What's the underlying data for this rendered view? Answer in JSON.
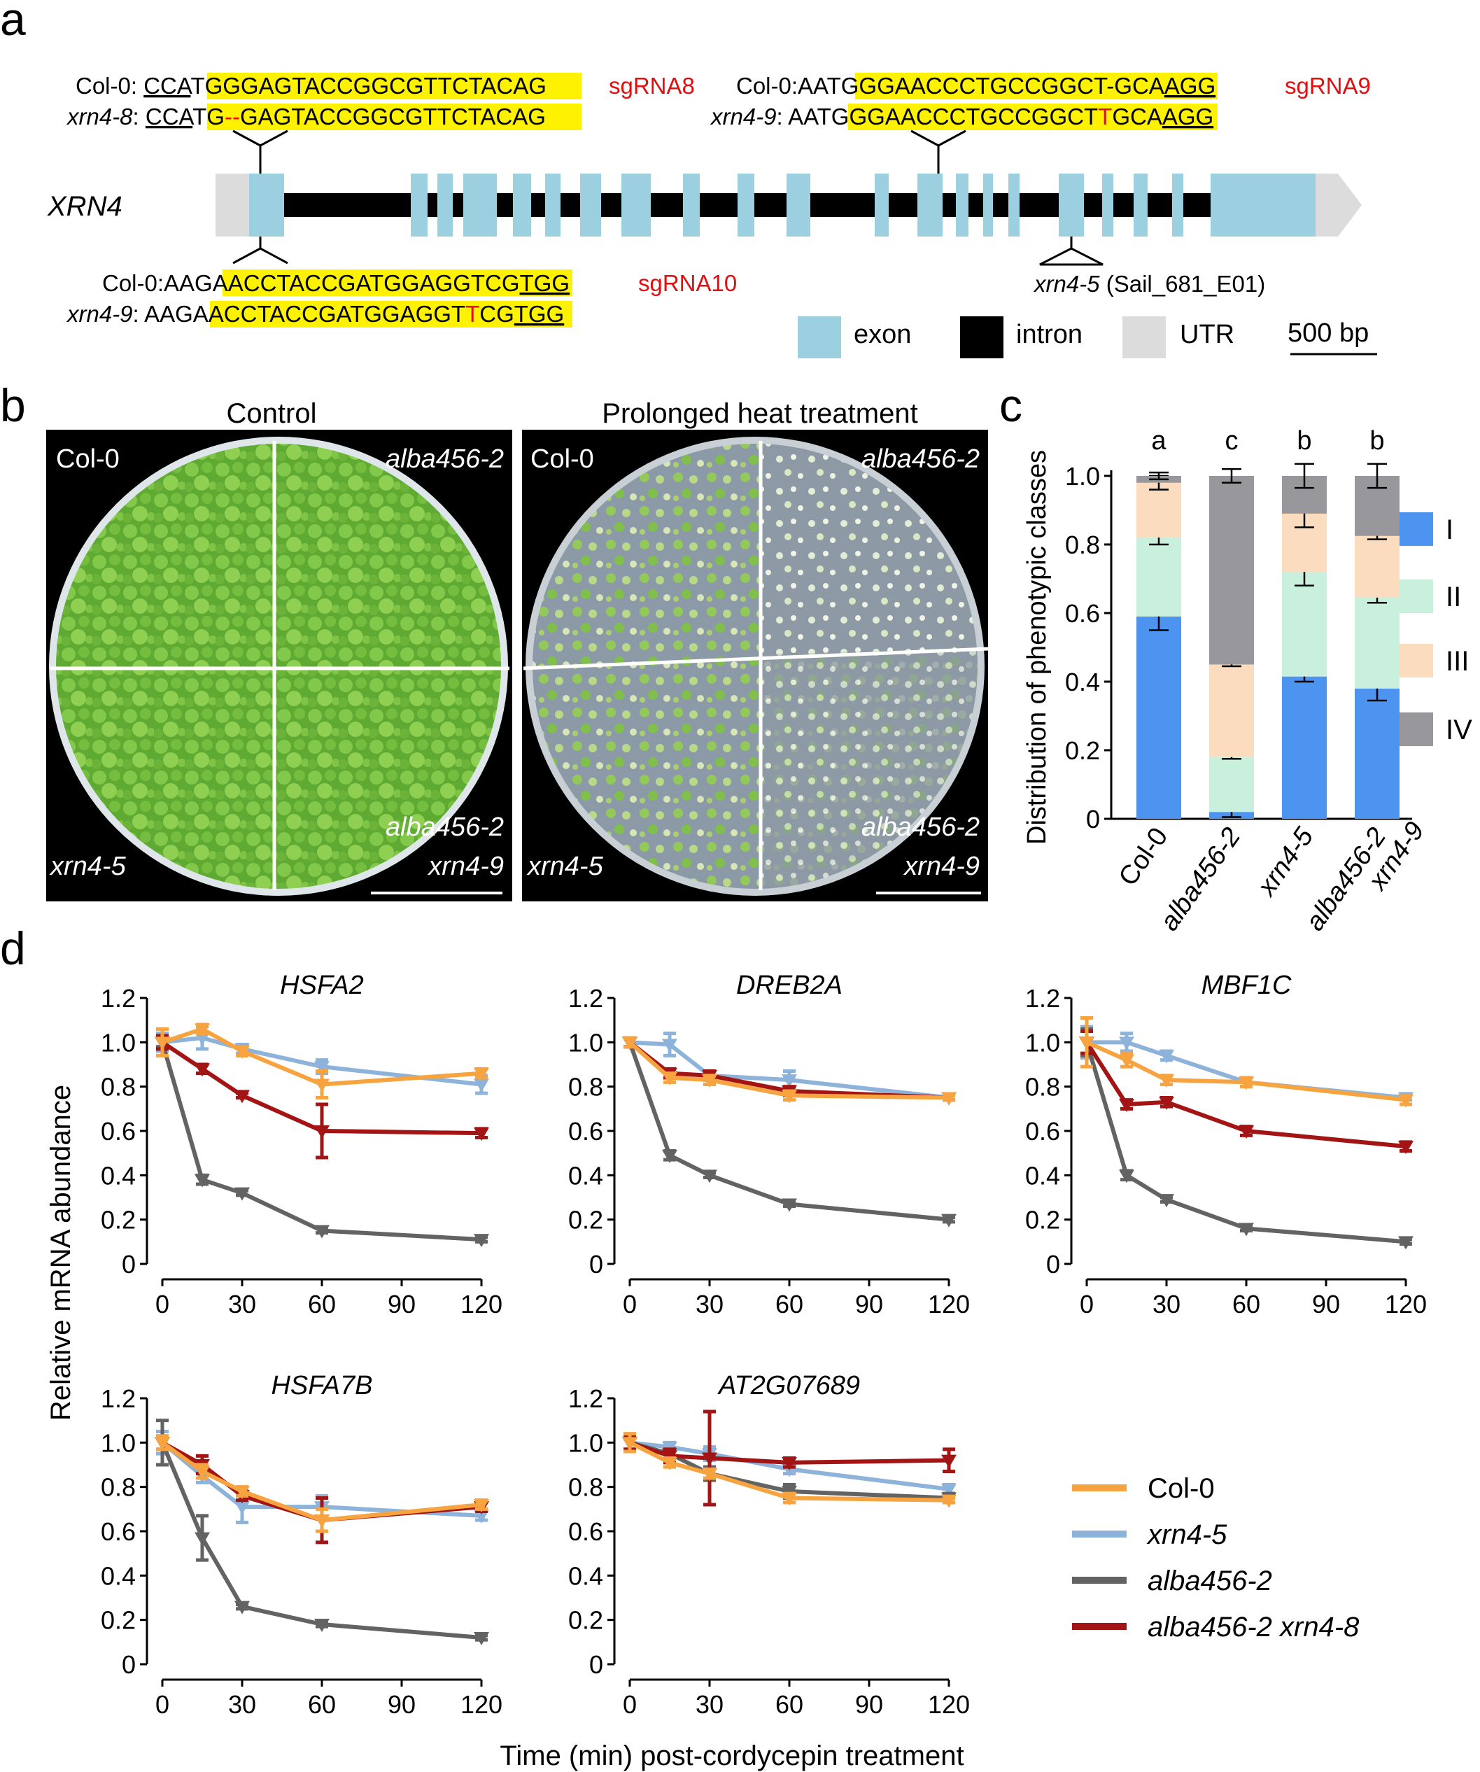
{
  "panels": {
    "a": "a",
    "b": "b",
    "c": "c",
    "d": "d"
  },
  "panel_a": {
    "gene": "XRN4",
    "sg8": {
      "l1": {
        "pre": "Col-0: ",
        "u1": "CCA",
        "y": "TGGGAGTACCGGCGTTCTA",
        "post": "CAG"
      },
      "l2": {
        "pre": "xrn4-8",
        "colon": ": ",
        "u1": "CCA",
        "yA": "TG",
        "del": "--",
        "yB": "GAGTACCGGCGTTCTA",
        "post": "CAG"
      },
      "name": "sgRNA8"
    },
    "sg9": {
      "l1": {
        "pre": "Col-0:AAT",
        "y": "GGGAACCCTGCCGGCT-GCA",
        "u": "AGG"
      },
      "l2": {
        "pre": "xrn4-9",
        "colon": ": AAT",
        "yA": "GGGAACCCTGCCGGCT",
        "ins": "T",
        "yB": "GCA",
        "u": "AGG"
      },
      "name": "sgRNA9"
    },
    "sg10": {
      "l1": {
        "pre": "Col-0:AAG",
        "y": "AACCTACCGATGGAGGTCG",
        "u": "TGG"
      },
      "l2": {
        "pre": "xrn4-9",
        "colon": ": AAG",
        "yA": "AACCTACCGATGGAGGT",
        "ins": "T",
        "yB": "CG",
        "u": "TGG"
      },
      "name": "sgRNA10"
    },
    "tdna": {
      "name": "xrn4-5",
      "line": " (Sail_681_E01)"
    },
    "legend": {
      "exon": "exon",
      "intron": "intron",
      "utr": "UTR",
      "scale": "500 bp"
    },
    "colors": {
      "exon": "#9ccfdf",
      "intron": "#000000",
      "utr": "#dcdcdc",
      "hl": "#fff200",
      "mut": "#e01010"
    }
  },
  "panel_b": {
    "left_title": "Control",
    "right_title": "Prolonged heat treatment",
    "q_tl": "Col-0",
    "q_tr": "alba456-2",
    "q_bl": "xrn4-5",
    "q_br1": "alba456-2",
    "q_br2": "xrn4-9"
  },
  "chart_data": [
    {
      "type": "bar",
      "stacked": true,
      "panel": "c",
      "ylabel": "Distribution of phenotypic classes",
      "ylim": [
        0,
        1.0
      ],
      "yticks": [
        "0",
        "0.2",
        "0.4",
        "0.6",
        "0.8",
        "1.0"
      ],
      "categories": [
        {
          "l1": "Col-0",
          "l2": ""
        },
        {
          "l1": "alba456-2",
          "l2": ""
        },
        {
          "l1": "xrn4-5",
          "l2": ""
        },
        {
          "l1": "alba456-2",
          "l2": "xrn4-9"
        }
      ],
      "letters": [
        "a",
        "c",
        "b",
        "b"
      ],
      "series": [
        {
          "name": "I",
          "color": "#4d94f0",
          "values": [
            0.59,
            0.02,
            0.415,
            0.38
          ],
          "err": [
            0.04,
            0.015,
            0.015,
            0.035
          ]
        },
        {
          "name": "II",
          "color": "#c9f0dd",
          "values": [
            0.23,
            0.16,
            0.305,
            0.265
          ],
          "err": [
            0.02,
            0.005,
            0.04,
            0.015
          ]
        },
        {
          "name": "III",
          "color": "#fbdcbf",
          "values": [
            0.16,
            0.27,
            0.17,
            0.18
          ],
          "err": [
            0.02,
            0.005,
            0.04,
            0.01
          ]
        },
        {
          "name": "IV",
          "color": "#97979c",
          "values": [
            0.02,
            0.55,
            0.11,
            0.175
          ],
          "err": [
            0.01,
            0.02,
            0.035,
            0.035
          ]
        }
      ]
    },
    {
      "type": "line",
      "panel": "d",
      "ylabel": "Relative mRNA abundance",
      "xlabel": "Time (min) post-cordycepin treatment",
      "x": [
        0,
        15,
        30,
        60,
        120
      ],
      "xticks": [
        "0",
        "30",
        "60",
        "90",
        "120"
      ],
      "xlim": [
        0,
        120
      ],
      "ylim": [
        0,
        1.2
      ],
      "yticks": [
        "0",
        "0.2",
        "0.4",
        "0.6",
        "0.8",
        "1.0",
        "1.2"
      ],
      "legend": [
        {
          "label": "Col-0",
          "color": "#f7a340"
        },
        {
          "label": "xrn4-5",
          "color": "#8eb3da"
        },
        {
          "label": "alba456-2",
          "color": "#636363"
        },
        {
          "label": "alba456-2 xrn4-8",
          "color": "#a31515"
        }
      ],
      "genes": [
        {
          "title": "HSFA2",
          "series": [
            {
              "name": "xrn4-5",
              "color": "#8eb3da",
              "values": [
                1.0,
                1.02,
                0.97,
                0.89,
                0.81
              ],
              "err": [
                0.04,
                0.05,
                0.02,
                0.03,
                0.04
              ]
            },
            {
              "name": "alba456-2",
              "color": "#636363",
              "values": [
                1.0,
                0.38,
                0.32,
                0.15,
                0.11
              ],
              "err": [
                0.02,
                0.02,
                0.01,
                0.01,
                0.01
              ]
            },
            {
              "name": "alba456-2 xrn4-8",
              "color": "#a31515",
              "values": [
                1.0,
                0.88,
                0.76,
                0.6,
                0.59
              ],
              "err": [
                0.03,
                0.02,
                0.01,
                0.12,
                0.02
              ]
            },
            {
              "name": "Col-0",
              "color": "#f7a340",
              "values": [
                1.0,
                1.06,
                0.96,
                0.81,
                0.86
              ],
              "err": [
                0.06,
                0.02,
                0.02,
                0.06,
                0.02
              ]
            }
          ]
        },
        {
          "title": "DREB2A",
          "series": [
            {
              "name": "xrn4-5",
              "color": "#8eb3da",
              "values": [
                1.0,
                0.99,
                0.85,
                0.83,
                0.75
              ],
              "err": [
                0.02,
                0.05,
                0.02,
                0.04,
                0.01
              ]
            },
            {
              "name": "alba456-2",
              "color": "#636363",
              "values": [
                1.0,
                0.49,
                0.4,
                0.27,
                0.2
              ],
              "err": [
                0.02,
                0.02,
                0.01,
                0.01,
                0.01
              ]
            },
            {
              "name": "alba456-2 xrn4-8",
              "color": "#a31515",
              "values": [
                1.0,
                0.86,
                0.85,
                0.78,
                0.75
              ],
              "err": [
                0.02,
                0.02,
                0.02,
                0.02,
                0.01
              ]
            },
            {
              "name": "Col-0",
              "color": "#f7a340",
              "values": [
                1.0,
                0.84,
                0.83,
                0.76,
                0.75
              ],
              "err": [
                0.02,
                0.02,
                0.02,
                0.02,
                0.01
              ]
            }
          ]
        },
        {
          "title": "MBF1C",
          "series": [
            {
              "name": "xrn4-5",
              "color": "#8eb3da",
              "values": [
                1.0,
                1.0,
                0.94,
                0.82,
                0.75
              ],
              "err": [
                0.07,
                0.04,
                0.02,
                0.02,
                0.01
              ]
            },
            {
              "name": "alba456-2",
              "color": "#636363",
              "values": [
                1.0,
                0.4,
                0.29,
                0.16,
                0.1
              ],
              "err": [
                0.06,
                0.02,
                0.01,
                0.01,
                0.01
              ]
            },
            {
              "name": "alba456-2 xrn4-8",
              "color": "#a31515",
              "values": [
                1.0,
                0.72,
                0.73,
                0.6,
                0.53
              ],
              "err": [
                0.05,
                0.02,
                0.02,
                0.02,
                0.02
              ]
            },
            {
              "name": "Col-0",
              "color": "#f7a340",
              "values": [
                1.0,
                0.92,
                0.83,
                0.82,
                0.74
              ],
              "err": [
                0.11,
                0.03,
                0.02,
                0.02,
                0.02
              ]
            }
          ]
        },
        {
          "title": "HSFA7B",
          "series": [
            {
              "name": "xrn4-5",
              "color": "#8eb3da",
              "values": [
                1.0,
                0.85,
                0.71,
                0.71,
                0.67
              ],
              "err": [
                0.05,
                0.03,
                0.07,
                0.05,
                0.02
              ]
            },
            {
              "name": "alba456-2",
              "color": "#636363",
              "values": [
                1.0,
                0.57,
                0.26,
                0.18,
                0.12
              ],
              "err": [
                0.1,
                0.1,
                0.01,
                0.01,
                0.01
              ]
            },
            {
              "name": "alba456-2 xrn4-8",
              "color": "#a31515",
              "values": [
                1.0,
                0.9,
                0.76,
                0.65,
                0.71
              ],
              "err": [
                0.03,
                0.04,
                0.02,
                0.1,
                0.02
              ]
            },
            {
              "name": "Col-0",
              "color": "#f7a340",
              "values": [
                1.0,
                0.87,
                0.78,
                0.65,
                0.72
              ],
              "err": [
                0.03,
                0.03,
                0.02,
                0.05,
                0.02
              ]
            }
          ]
        },
        {
          "title": "AT2G07689",
          "series": [
            {
              "name": "xrn4-5",
              "color": "#8eb3da",
              "values": [
                1.0,
                0.98,
                0.95,
                0.88,
                0.79
              ],
              "err": [
                0.03,
                0.02,
                0.03,
                0.02,
                0.02
              ]
            },
            {
              "name": "alba456-2",
              "color": "#636363",
              "values": [
                1.0,
                0.95,
                0.86,
                0.78,
                0.75
              ],
              "err": [
                0.03,
                0.02,
                0.03,
                0.03,
                0.02
              ]
            },
            {
              "name": "alba456-2 xrn4-8",
              "color": "#a31515",
              "values": [
                1.0,
                0.94,
                0.93,
                0.91,
                0.92
              ],
              "err": [
                0.03,
                0.03,
                0.21,
                0.02,
                0.05
              ]
            },
            {
              "name": "Col-0",
              "color": "#f7a340",
              "values": [
                1.0,
                0.91,
                0.86,
                0.75,
                0.74
              ],
              "err": [
                0.04,
                0.02,
                0.02,
                0.02,
                0.01
              ]
            }
          ]
        }
      ]
    }
  ]
}
